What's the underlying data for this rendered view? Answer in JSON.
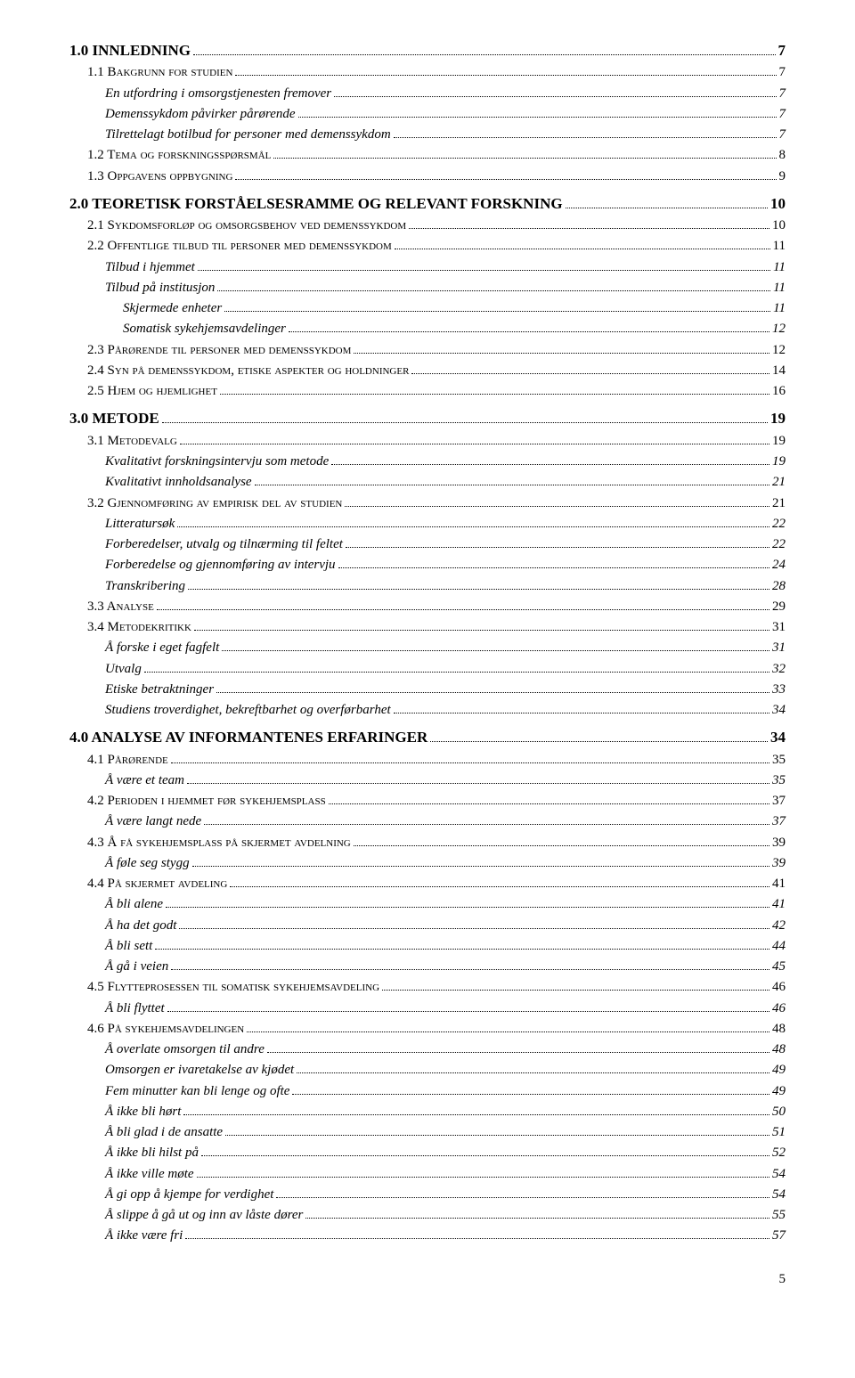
{
  "page_number": "5",
  "toc": [
    {
      "level": 1,
      "label": "1.0 INNLEDNING",
      "page": "7"
    },
    {
      "level": 2,
      "label": "1.1 Bakgrunn for studien",
      "page": "7",
      "smallcaps": true
    },
    {
      "level": 3,
      "label": "En utfordring i omsorgstjenesten fremover",
      "page": "7"
    },
    {
      "level": 3,
      "label": "Demenssykdom påvirker pårørende",
      "page": "7"
    },
    {
      "level": 3,
      "label": "Tilrettelagt botilbud for personer med demenssykdom",
      "page": "7"
    },
    {
      "level": 2,
      "label": "1.2 Tema og forskningsspørsmål",
      "page": "8",
      "smallcaps": true
    },
    {
      "level": 2,
      "label": "1.3 Oppgavens oppbygning",
      "page": "9",
      "smallcaps": true
    },
    {
      "level": 1,
      "label": "2.0 TEORETISK FORSTÅELSESRAMME OG RELEVANT FORSKNING",
      "page": "10"
    },
    {
      "level": 2,
      "label": "2.1 Sykdomsforløp og omsorgsbehov ved demenssykdom",
      "page": "10",
      "smallcaps": true
    },
    {
      "level": 2,
      "label": "2.2 Offentlige tilbud til personer med demenssykdom",
      "page": "11",
      "smallcaps": true
    },
    {
      "level": 3,
      "label": "Tilbud i hjemmet",
      "page": "11"
    },
    {
      "level": 3,
      "label": "Tilbud på institusjon",
      "page": "11"
    },
    {
      "level": 4,
      "label": "Skjermede enheter",
      "page": "11"
    },
    {
      "level": 4,
      "label": "Somatisk sykehjemsavdelinger",
      "page": "12"
    },
    {
      "level": 2,
      "label": "2.3 Pårørende til personer med demenssykdom",
      "page": "12",
      "smallcaps": true
    },
    {
      "level": 2,
      "label": "2.4 Syn på demenssykdom, etiske aspekter og holdninger",
      "page": "14",
      "smallcaps": true
    },
    {
      "level": 2,
      "label": "2.5 Hjem og hjemlighet",
      "page": "16",
      "smallcaps": true
    },
    {
      "level": 1,
      "label": "3.0 METODE",
      "page": "19"
    },
    {
      "level": 2,
      "label": "3.1 Metodevalg",
      "page": "19",
      "smallcaps": true
    },
    {
      "level": 3,
      "label": "Kvalitativt forskningsintervju som metode",
      "page": "19"
    },
    {
      "level": 3,
      "label": "Kvalitativt innholdsanalyse",
      "page": "21"
    },
    {
      "level": 2,
      "label": "3.2 Gjennomføring av empirisk del av studien",
      "page": "21",
      "smallcaps": true
    },
    {
      "level": 3,
      "label": "Litteratursøk",
      "page": "22"
    },
    {
      "level": 3,
      "label": "Forberedelser, utvalg og tilnærming til feltet",
      "page": "22"
    },
    {
      "level": 3,
      "label": "Forberedelse og gjennomføring av intervju",
      "page": "24"
    },
    {
      "level": 3,
      "label": "Transkribering",
      "page": "28"
    },
    {
      "level": 2,
      "label": "3.3 Analyse",
      "page": "29",
      "smallcaps": true
    },
    {
      "level": 2,
      "label": "3.4 Metodekritikk",
      "page": "31",
      "smallcaps": true
    },
    {
      "level": 3,
      "label": "Å forske i eget fagfelt",
      "page": "31"
    },
    {
      "level": 3,
      "label": "Utvalg",
      "page": "32"
    },
    {
      "level": 3,
      "label": "Etiske betraktninger",
      "page": "33"
    },
    {
      "level": 3,
      "label": "Studiens troverdighet, bekreftbarhet og overførbarhet",
      "page": "34"
    },
    {
      "level": 1,
      "label": "4.0 ANALYSE AV INFORMANTENES ERFARINGER",
      "page": "34"
    },
    {
      "level": 2,
      "label": "4.1 Pårørende",
      "page": "35",
      "smallcaps": true
    },
    {
      "level": 3,
      "label": "Å være et team",
      "page": "35"
    },
    {
      "level": 2,
      "label": "4.2 Perioden i hjemmet før sykehjemsplass",
      "page": "37",
      "smallcaps": true
    },
    {
      "level": 3,
      "label": "Å være langt nede",
      "page": "37"
    },
    {
      "level": 2,
      "label": "4.3 Å få sykehjemsplass på skjermet avdelning",
      "page": "39",
      "smallcaps": true
    },
    {
      "level": 3,
      "label": "Å føle seg stygg",
      "page": "39"
    },
    {
      "level": 2,
      "label": "4.4 På skjermet avdeling",
      "page": "41",
      "smallcaps": true
    },
    {
      "level": 3,
      "label": "Å bli alene",
      "page": "41"
    },
    {
      "level": 3,
      "label": "Å ha det godt",
      "page": "42"
    },
    {
      "level": 3,
      "label": "Å bli sett",
      "page": "44"
    },
    {
      "level": 3,
      "label": "Å gå i veien",
      "page": "45"
    },
    {
      "level": 2,
      "label": "4.5 Flytteprosessen til somatisk sykehjemsavdeling",
      "page": "46",
      "smallcaps": true
    },
    {
      "level": 3,
      "label": "Å bli flyttet",
      "page": "46"
    },
    {
      "level": 2,
      "label": "4.6 På sykehjemsavdelingen",
      "page": "48",
      "smallcaps": true
    },
    {
      "level": 3,
      "label": "Å overlate omsorgen til andre",
      "page": "48"
    },
    {
      "level": 3,
      "label": "Omsorgen er ivaretakelse av kjødet",
      "page": "49"
    },
    {
      "level": 3,
      "label": "Fem minutter kan bli lenge og ofte",
      "page": "49"
    },
    {
      "level": 3,
      "label": "Å ikke bli hørt",
      "page": "50"
    },
    {
      "level": 3,
      "label": "Å bli glad i de ansatte",
      "page": "51"
    },
    {
      "level": 3,
      "label": "Å ikke bli hilst på",
      "page": "52"
    },
    {
      "level": 3,
      "label": "Å ikke ville møte",
      "page": "54"
    },
    {
      "level": 3,
      "label": "Å gi opp å kjempe for verdighet",
      "page": "54"
    },
    {
      "level": 3,
      "label": "Å slippe å gå ut og inn av låste dører",
      "page": "55"
    },
    {
      "level": 3,
      "label": "Å ikke være fri",
      "page": "57"
    }
  ]
}
